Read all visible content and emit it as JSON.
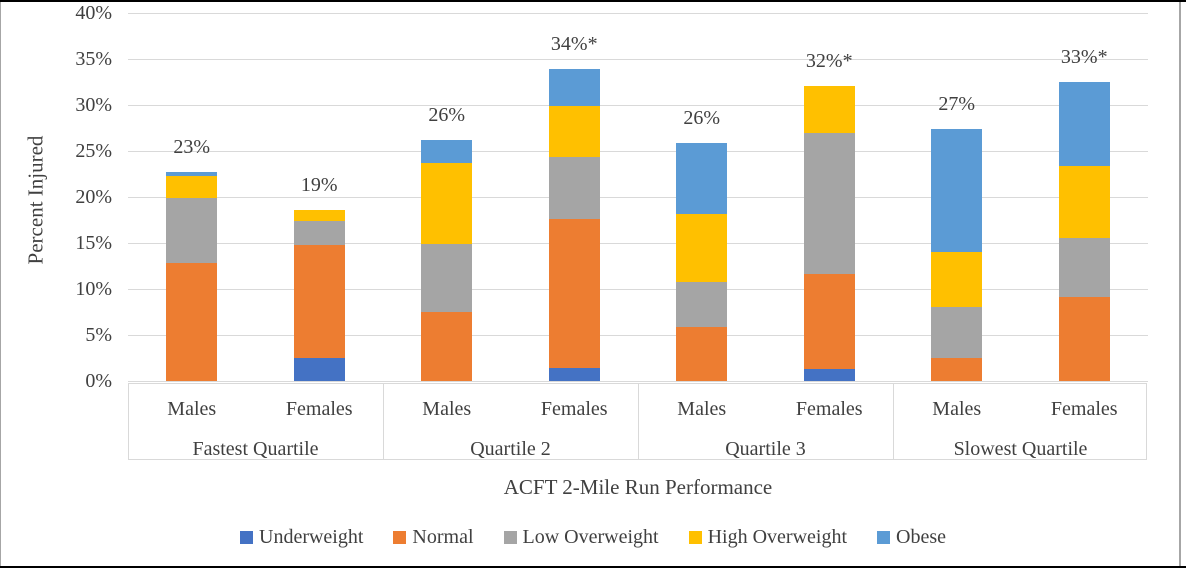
{
  "chart_data": {
    "type": "bar",
    "stacked": true,
    "title": "",
    "ylabel": "Percent Injured",
    "xlabel": "ACFT 2-Mile Run Performance",
    "ylim": [
      0,
      40
    ],
    "yticks": [
      "0%",
      "5%",
      "10%",
      "15%",
      "20%",
      "25%",
      "30%",
      "35%",
      "40%"
    ],
    "grid": true,
    "grid_color": "#d9d9d9",
    "text_color": "#404040",
    "legend_position": "bottom",
    "groups": [
      {
        "label": "Fastest Quartile",
        "categories": [
          "Males",
          "Females"
        ]
      },
      {
        "label": "Quartile 2",
        "categories": [
          "Males",
          "Females"
        ]
      },
      {
        "label": "Quartile 3",
        "categories": [
          "Males",
          "Females"
        ]
      },
      {
        "label": "Slowest Quartile",
        "categories": [
          "Males",
          "Females"
        ]
      }
    ],
    "bar_labels": [
      "23%",
      "19%",
      "26%",
      "34%*",
      "26%",
      "32%*",
      "27%",
      "33%*"
    ],
    "series": [
      {
        "name": "Underweight",
        "color": "#4472C4",
        "values": [
          0,
          2.5,
          0,
          1.4,
          0,
          1.3,
          0,
          0
        ]
      },
      {
        "name": "Normal",
        "color": "#ED7D31",
        "values": [
          12.8,
          12.3,
          7.5,
          16.2,
          5.9,
          10.3,
          2.5,
          9.1
        ]
      },
      {
        "name": "Low Overweight",
        "color": "#A5A5A5",
        "values": [
          7.1,
          2.6,
          7.4,
          6.8,
          4.9,
          15.4,
          5.5,
          6.4
        ]
      },
      {
        "name": "High Overweight",
        "color": "#FFC000",
        "values": [
          2.4,
          1.2,
          8.8,
          5.5,
          7.4,
          5.1,
          6.0,
          7.9
        ]
      },
      {
        "name": "Obese",
        "color": "#5B9BD5",
        "values": [
          0.4,
          0,
          2.5,
          4.0,
          7.7,
          0,
          13.4,
          9.1
        ]
      }
    ]
  }
}
